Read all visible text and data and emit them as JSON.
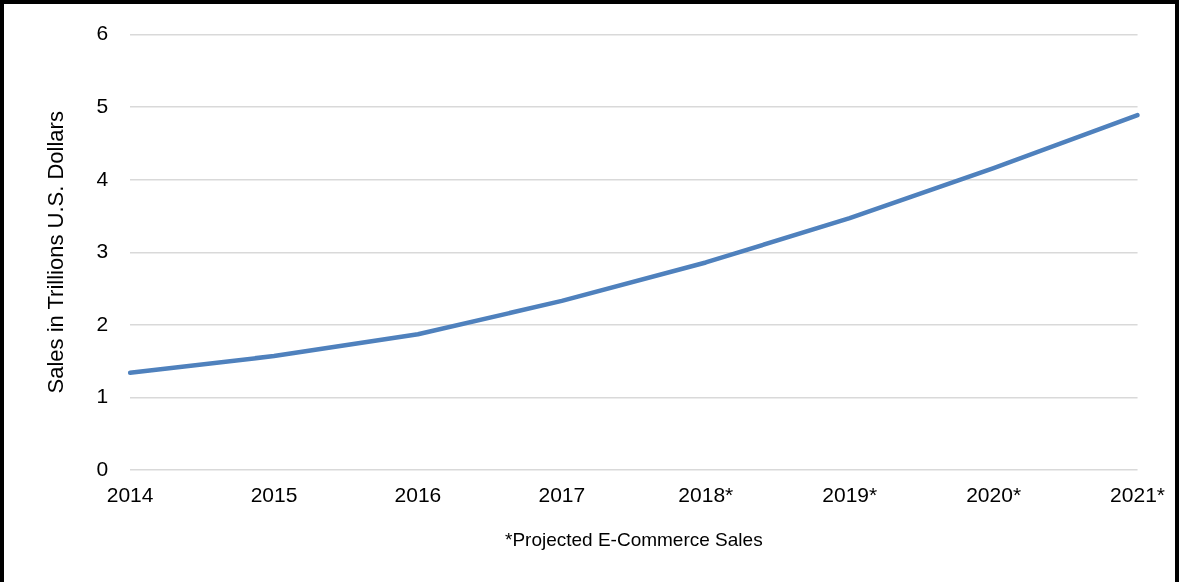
{
  "chart_data": {
    "type": "line",
    "xlabel": "*Projected E-Commerce Sales",
    "ylabel": "Sales in Trillions U.S. Dollars",
    "categories": [
      "2014",
      "2015",
      "2016",
      "2017",
      "2018*",
      "2019*",
      "2020*",
      "2021*"
    ],
    "series": [
      {
        "color": "#4f81bd",
        "values": [
          1.34,
          1.57,
          1.87,
          2.33,
          2.86,
          3.47,
          4.16,
          4.89
        ]
      }
    ],
    "ylim": [
      0,
      6
    ],
    "yticks": [
      0,
      1,
      2,
      3,
      4,
      5,
      6
    ],
    "grid": "y",
    "legend": false,
    "marker": "none",
    "line_style": "solid"
  }
}
